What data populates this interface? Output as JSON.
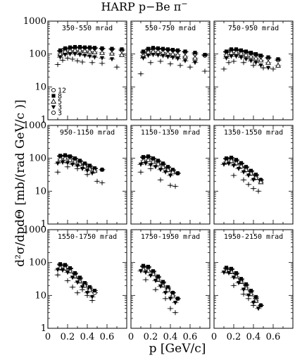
{
  "figure": {
    "title": "HARP p−Be π",
    "title_superscript": "−",
    "xlabel": "p [GeV/c]",
    "ylabel": "d²σ/dpdΘ [mb/(rad GeV/c )]"
  },
  "legend": [
    {
      "label": "12",
      "marker": "open-circle"
    },
    {
      "label": "8",
      "marker": "filled-square"
    },
    {
      "label": "5",
      "marker": "open-triangle"
    },
    {
      "label": "3",
      "marker": "filled-triangle-down"
    },
    {
      "label": "3",
      "marker": "open-circle"
    }
  ],
  "chart_data": {
    "type": "scatter",
    "layout": "3x3 grid of panels",
    "xlim": [
      0,
      0.8
    ],
    "ylim": [
      1,
      1000
    ],
    "yscale": "log",
    "x_ticks": [
      "0",
      "0.2",
      "0.4",
      "0.6"
    ],
    "y_ticks": [
      "1",
      "10",
      "100",
      "1000"
    ],
    "panels": [
      {
        "label": "350-550 mrad",
        "series": [
          {
            "x": [
              0.125,
              0.175,
              0.225,
              0.275,
              0.325,
              0.375,
              0.425,
              0.475,
              0.55,
              0.65,
              0.75
            ],
            "y": [
              120,
              140,
              150,
              155,
              155,
              155,
              150,
              150,
              145,
              140,
              130
            ]
          },
          {
            "x": [
              0.125,
              0.175,
              0.225,
              0.275,
              0.325,
              0.375,
              0.425,
              0.475,
              0.55,
              0.65,
              0.75
            ],
            "y": [
              130,
              150,
              160,
              165,
              165,
              160,
              160,
              155,
              150,
              145,
              140
            ]
          },
          {
            "x": [
              0.125,
              0.175,
              0.225,
              0.275,
              0.325,
              0.375,
              0.425,
              0.475,
              0.55,
              0.65,
              0.75
            ],
            "y": [
              100,
              120,
              125,
              130,
              130,
              125,
              120,
              115,
              110,
              105,
              95
            ]
          },
          {
            "x": [
              0.125,
              0.175,
              0.225,
              0.275,
              0.325,
              0.375,
              0.425,
              0.475,
              0.55,
              0.65
            ],
            "y": [
              80,
              95,
              100,
              100,
              95,
              90,
              85,
              80,
              75,
              70
            ]
          },
          {
            "x": [
              0.1,
              0.15,
              0.2,
              0.25,
              0.3,
              0.35,
              0.45,
              0.55,
              0.7
            ],
            "y": [
              48,
              65,
              75,
              70,
              62,
              57,
              55,
              52,
              40
            ]
          }
        ]
      },
      {
        "label": "550-750 mrad",
        "series": [
          {
            "x": [
              0.125,
              0.175,
              0.225,
              0.275,
              0.325,
              0.375,
              0.425,
              0.475,
              0.55,
              0.65,
              0.75
            ],
            "y": [
              110,
              135,
              145,
              145,
              140,
              135,
              130,
              125,
              115,
              100,
              90
            ]
          },
          {
            "x": [
              0.125,
              0.175,
              0.225,
              0.275,
              0.325,
              0.375,
              0.425,
              0.475,
              0.55,
              0.65,
              0.75
            ],
            "y": [
              120,
              145,
              155,
              150,
              145,
              140,
              135,
              130,
              120,
              110,
              95
            ]
          },
          {
            "x": [
              0.125,
              0.175,
              0.225,
              0.275,
              0.325,
              0.375,
              0.425,
              0.475,
              0.55,
              0.65
            ],
            "y": [
              90,
              115,
              120,
              118,
              112,
              105,
              100,
              95,
              85,
              75
            ]
          },
          {
            "x": [
              0.125,
              0.175,
              0.225,
              0.275,
              0.325,
              0.375,
              0.425,
              0.475,
              0.55,
              0.65
            ],
            "y": [
              75,
              90,
              95,
              92,
              88,
              82,
              78,
              72,
              62,
              55
            ]
          },
          {
            "x": [
              0.1,
              0.2,
              0.3,
              0.4,
              0.5,
              0.6,
              0.75
            ],
            "y": [
              25,
              55,
              60,
              50,
              45,
              40,
              30
            ]
          }
        ]
      },
      {
        "label": "750-950 mrad",
        "series": [
          {
            "x": [
              0.125,
              0.175,
              0.225,
              0.275,
              0.325,
              0.375,
              0.425,
              0.475,
              0.55,
              0.65
            ],
            "y": [
              115,
              130,
              135,
              125,
              115,
              105,
              95,
              85,
              75,
              65
            ]
          },
          {
            "x": [
              0.125,
              0.175,
              0.225,
              0.275,
              0.325,
              0.375,
              0.425,
              0.475,
              0.55,
              0.65
            ],
            "y": [
              120,
              140,
              140,
              130,
              120,
              110,
              100,
              90,
              80,
              70
            ]
          },
          {
            "x": [
              0.125,
              0.175,
              0.225,
              0.275,
              0.325,
              0.375,
              0.425,
              0.475,
              0.55,
              0.65
            ],
            "y": [
              95,
              110,
              112,
              105,
              95,
              85,
              75,
              65,
              55,
              45
            ]
          },
          {
            "x": [
              0.125,
              0.175,
              0.225,
              0.275,
              0.325,
              0.375,
              0.425,
              0.475,
              0.55
            ],
            "y": [
              75,
              85,
              85,
              78,
              70,
              62,
              55,
              45,
              38
            ]
          },
          {
            "x": [
              0.1,
              0.15,
              0.2,
              0.3,
              0.4,
              0.5,
              0.6
            ],
            "y": [
              35,
              55,
              60,
              55,
              45,
              38,
              35
            ]
          }
        ]
      },
      {
        "label": "950-1150 mrad",
        "series": [
          {
            "x": [
              0.125,
              0.175,
              0.225,
              0.275,
              0.325,
              0.375,
              0.425,
              0.475,
              0.55
            ],
            "y": [
              115,
              120,
              110,
              95,
              80,
              65,
              55,
              48,
              45
            ]
          },
          {
            "x": [
              0.125,
              0.175,
              0.225,
              0.275,
              0.325,
              0.375,
              0.425,
              0.475,
              0.55
            ],
            "y": [
              120,
              125,
              115,
              100,
              85,
              70,
              60,
              50,
              45
            ]
          },
          {
            "x": [
              0.125,
              0.175,
              0.225,
              0.275,
              0.325,
              0.375,
              0.425,
              0.475
            ],
            "y": [
              95,
              100,
              90,
              80,
              68,
              58,
              48,
              42
            ]
          },
          {
            "x": [
              0.1,
              0.15,
              0.2,
              0.25,
              0.3,
              0.35,
              0.4,
              0.45
            ],
            "y": [
              70,
              75,
              72,
              65,
              58,
              48,
              42,
              35
            ]
          },
          {
            "x": [
              0.1,
              0.2,
              0.3,
              0.4,
              0.5,
              0.55
            ],
            "y": [
              38,
              55,
              48,
              32,
              20,
              18
            ]
          }
        ]
      },
      {
        "label": "1150-1350 mrad",
        "series": [
          {
            "x": [
              0.125,
              0.175,
              0.225,
              0.275,
              0.325,
              0.375,
              0.425,
              0.475
            ],
            "y": [
              105,
              110,
              95,
              80,
              65,
              52,
              42,
              35
            ]
          },
          {
            "x": [
              0.125,
              0.175,
              0.225,
              0.275,
              0.325,
              0.375,
              0.425,
              0.475
            ],
            "y": [
              110,
              115,
              100,
              85,
              70,
              55,
              45,
              35
            ]
          },
          {
            "x": [
              0.125,
              0.175,
              0.225,
              0.275,
              0.325,
              0.375,
              0.425
            ],
            "y": [
              85,
              90,
              80,
              68,
              55,
              45,
              38
            ]
          },
          {
            "x": [
              0.1,
              0.15,
              0.2,
              0.25,
              0.3,
              0.35,
              0.4
            ],
            "y": [
              65,
              70,
              62,
              55,
              45,
              38,
              30
            ]
          },
          {
            "x": [
              0.1,
              0.2,
              0.3,
              0.4,
              0.45
            ],
            "y": [
              38,
              48,
              22,
              15,
              14
            ]
          }
        ]
      },
      {
        "label": "1350-1550 mrad",
        "series": [
          {
            "x": [
              0.125,
              0.175,
              0.225,
              0.275,
              0.325,
              0.375,
              0.425,
              0.475
            ],
            "y": [
              95,
              100,
              85,
              68,
              52,
              40,
              30,
              22
            ]
          },
          {
            "x": [
              0.125,
              0.175,
              0.225,
              0.275,
              0.325,
              0.375,
              0.425,
              0.475
            ],
            "y": [
              100,
              105,
              90,
              72,
              55,
              42,
              32,
              22
            ]
          },
          {
            "x": [
              0.125,
              0.175,
              0.225,
              0.275,
              0.325,
              0.375,
              0.425,
              0.475
            ],
            "y": [
              80,
              85,
              72,
              58,
              45,
              35,
              26,
              19
            ]
          },
          {
            "x": [
              0.1,
              0.15,
              0.2,
              0.25,
              0.3,
              0.35,
              0.4
            ],
            "y": [
              65,
              68,
              60,
              48,
              38,
              30,
              22
            ]
          },
          {
            "x": [
              0.2,
              0.3,
              0.35,
              0.4,
              0.45
            ],
            "y": [
              30,
              22,
              16,
              12,
              10
            ]
          }
        ]
      },
      {
        "label": "1550-1750 mrad",
        "series": [
          {
            "x": [
              0.125,
              0.175,
              0.225,
              0.275,
              0.325,
              0.375,
              0.425,
              0.475
            ],
            "y": [
              85,
              80,
              65,
              45,
              32,
              22,
              16,
              12
            ]
          },
          {
            "x": [
              0.125,
              0.175,
              0.225,
              0.275,
              0.325,
              0.375,
              0.425,
              0.475
            ],
            "y": [
              90,
              85,
              68,
              48,
              35,
              24,
              18,
              14
            ]
          },
          {
            "x": [
              0.125,
              0.175,
              0.225,
              0.275,
              0.325,
              0.375,
              0.425
            ],
            "y": [
              70,
              68,
              55,
              38,
              27,
              20,
              15
            ]
          },
          {
            "x": [
              0.1,
              0.15,
              0.2,
              0.25,
              0.3,
              0.35,
              0.4,
              0.45
            ],
            "y": [
              60,
              58,
              50,
              35,
              25,
              18,
              12,
              9
            ]
          },
          {
            "x": [
              0.1,
              0.2,
              0.25,
              0.3,
              0.35,
              0.4,
              0.45
            ],
            "y": [
              42,
              28,
              18,
              12,
              15,
              10,
              7
            ]
          }
        ]
      },
      {
        "label": "1750-1950 mrad",
        "series": [
          {
            "x": [
              0.125,
              0.175,
              0.225,
              0.275,
              0.325,
              0.375,
              0.425,
              0.475
            ],
            "y": [
              75,
              70,
              52,
              35,
              24,
              16,
              12,
              8
            ]
          },
          {
            "x": [
              0.125,
              0.175,
              0.225,
              0.275,
              0.325,
              0.375,
              0.425,
              0.475
            ],
            "y": [
              80,
              75,
              55,
              38,
              26,
              18,
              12,
              8
            ]
          },
          {
            "x": [
              0.125,
              0.175,
              0.225,
              0.275,
              0.325,
              0.375,
              0.425
            ],
            "y": [
              62,
              58,
              45,
              30,
              20,
              15,
              10
            ]
          },
          {
            "x": [
              0.1,
              0.15,
              0.2,
              0.25,
              0.3,
              0.35,
              0.4,
              0.45
            ],
            "y": [
              55,
              50,
              40,
              28,
              19,
              12,
              8,
              6
            ]
          },
          {
            "x": [
              0.15,
              0.25,
              0.35,
              0.4,
              0.45
            ],
            "y": [
              30,
              15,
              8,
              4,
              3
            ]
          }
        ]
      },
      {
        "label": "1950-2150 mrad",
        "series": [
          {
            "x": [
              0.125,
              0.175,
              0.225,
              0.275,
              0.325,
              0.375,
              0.425,
              0.475
            ],
            "y": [
              65,
              62,
              45,
              30,
              20,
              13,
              8,
              5
            ]
          },
          {
            "x": [
              0.125,
              0.175,
              0.225,
              0.275,
              0.325,
              0.375,
              0.425,
              0.475
            ],
            "y": [
              70,
              65,
              48,
              32,
              22,
              14,
              9,
              5
            ]
          },
          {
            "x": [
              0.125,
              0.175,
              0.225,
              0.275,
              0.325,
              0.375,
              0.425
            ],
            "y": [
              55,
              52,
              38,
              26,
              17,
              11,
              7
            ]
          },
          {
            "x": [
              0.1,
              0.15,
              0.2,
              0.25,
              0.3,
              0.35,
              0.4,
              0.45
            ],
            "y": [
              50,
              48,
              35,
              24,
              15,
              10,
              6,
              4
            ]
          },
          {
            "x": [
              0.2,
              0.3,
              0.35,
              0.4
            ],
            "y": [
              20,
              11,
              8,
              5
            ]
          }
        ]
      }
    ]
  }
}
